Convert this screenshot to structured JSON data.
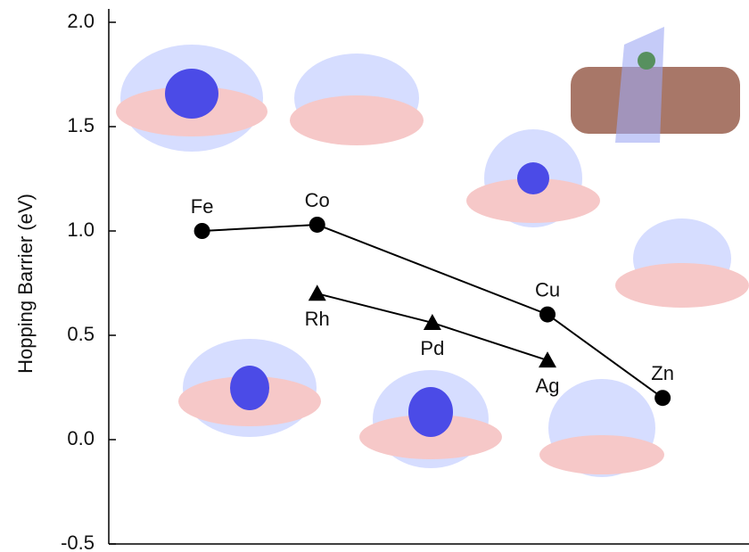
{
  "chart_data": {
    "type": "line",
    "ylabel": "Hopping Barrier (eV)",
    "ylim": [
      -0.5,
      2.0
    ],
    "yticks": [
      -0.5,
      {
        "value": 0,
        "label": "0.0"
      },
      0.5,
      {
        "value": 1,
        "label": "1.0"
      },
      1.5,
      {
        "value": 2,
        "label": "2.0"
      }
    ],
    "xlim": [
      0.19,
      5.75
    ],
    "series": [
      {
        "marker": "circle",
        "color": "#000000",
        "x": [
          1,
          2,
          4,
          5
        ],
        "values": [
          1.0,
          1.03,
          0.6,
          0.2
        ],
        "labels": [
          "Fe",
          "Co",
          "Cu",
          "Zn"
        ]
      },
      {
        "marker": "triangle",
        "color": "#000000",
        "x": [
          2,
          3,
          4
        ],
        "values": [
          0.7,
          0.56,
          0.38
        ],
        "labels": [
          "Rh",
          "Pd",
          "Ag"
        ]
      }
    ]
  }
}
